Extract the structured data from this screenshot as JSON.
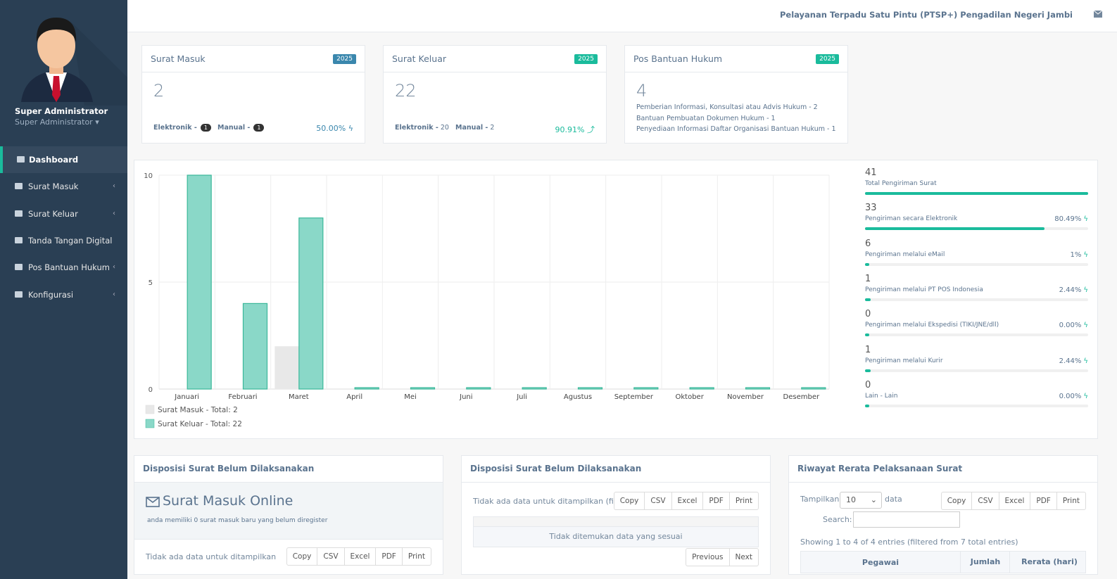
{
  "sidebar": {
    "user_name": "Super Administrator",
    "user_role": "Super Administrator",
    "menu": [
      "Dashboard",
      "Surat Masuk",
      "Surat Keluar",
      "Tanda Tangan Digital",
      "Pos Bantuan Hukum",
      "Konfigurasi"
    ]
  },
  "header": {
    "title": "Pelayanan Terpadu Satu Pintu (PTSP+) Pengadilan Negeri Jambi"
  },
  "cards": [
    {
      "title": "Surat Masuk",
      "badge": "2025",
      "count": "2",
      "elektronik_label": "Elektronik -",
      "elektronik": "1",
      "manual_label": "Manual -",
      "manual": "1",
      "percent": "50.00%"
    },
    {
      "title": "Surat Keluar",
      "badge": "2025",
      "count": "22",
      "elektronik_label": "Elektronik -",
      "elektronik": "20",
      "manual_label": "Manual -",
      "manual": "2",
      "percent": "90.91%"
    },
    {
      "title": "Pos Bantuan Hukum",
      "badge": "2025",
      "count": "4",
      "lines": [
        "Pemberian Informasi, Konsultasi atau Advis Hukum - 2",
        "Bantuan Pembuatan Dokumen Hukum - 1",
        "Penyediaan Informasi Daftar Organisasi Bantuan Hukum - 1"
      ]
    }
  ],
  "chart_data": {
    "type": "bar",
    "categories": [
      "Januari",
      "Februari",
      "Maret",
      "April",
      "Mei",
      "Juni",
      "Juli",
      "Agustus",
      "September",
      "Oktober",
      "November",
      "Desember"
    ],
    "series": [
      {
        "name": "Surat Masuk - Total: 2",
        "color": "#e8e8e8",
        "values": [
          0,
          0,
          2,
          0,
          0,
          0,
          0,
          0,
          0,
          0,
          0,
          0
        ]
      },
      {
        "name": "Surat Keluar - Total: 22",
        "color": "#8ad8c8",
        "values": [
          10,
          4,
          8,
          0,
          0,
          0,
          0,
          0,
          0,
          0,
          0,
          0
        ]
      }
    ],
    "ylim": [
      0,
      10
    ],
    "yticks": [
      0,
      5,
      10
    ],
    "grid": true,
    "legend": "bottom-left"
  },
  "stats": [
    {
      "value": 41,
      "label": "Total Pengiriman Surat"
    },
    {
      "value": 33,
      "label": "Pengiriman secara Elektronik",
      "percent": 80.49,
      "percent_label": "80.49%"
    },
    {
      "value": 6,
      "label": "Pengiriman melalui eMail",
      "percent": 1,
      "percent_label": "1%"
    },
    {
      "value": 1,
      "label": "Pengiriman melalui PT POS Indonesia",
      "percent": 2.44,
      "percent_label": "2.44%"
    },
    {
      "value": 0,
      "label": "Pengiriman melalui Ekspedisi (TIKI/JNE/dll)",
      "percent": 0,
      "percent_label": "0.00%"
    },
    {
      "value": 1,
      "label": "Pengiriman melalui Kurir",
      "percent": 2.44,
      "percent_label": "2.44%"
    },
    {
      "value": 0,
      "label": "Lain - Lain",
      "percent": 0,
      "percent_label": "0.00%"
    }
  ],
  "panels": [
    {
      "title": "Disposisi Surat Belum Dilaksanakan",
      "heading": "Surat Masuk Online",
      "subheading": "anda memiliki 0 surat masuk baru yang belum diregister",
      "info": "Tidak ada data untuk ditampilkan",
      "buttons": [
        "Copy",
        "CSV",
        "Excel",
        "PDF",
        "Print"
      ]
    },
    {
      "title": "Disposisi Surat Belum Dilaksanakan",
      "info": "Tidak ada data untuk ditampilkan (filtered from",
      "buttons": [
        "Copy",
        "CSV",
        "Excel",
        "PDF",
        "Print"
      ],
      "empty": "Tidak ditemukan data yang sesuai",
      "pager": [
        "Previous",
        "Next"
      ]
    },
    {
      "title": "Riwayat Rerata Pelaksanaan Surat",
      "show_label": "Tampilkan",
      "show_value": "10",
      "show_suffix": "data",
      "search_label": "Search:",
      "buttons": [
        "Copy",
        "CSV",
        "Excel",
        "PDF",
        "Print"
      ],
      "info": "Showing 1 to 4 of 4 entries (filtered from 7 total entries)",
      "columns": [
        "Pegawai",
        "Jumlah",
        "Rerata (hari)"
      ]
    }
  ]
}
